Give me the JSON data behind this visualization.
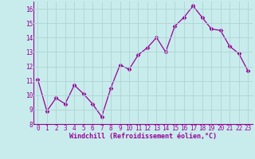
{
  "x": [
    0,
    1,
    2,
    3,
    4,
    5,
    6,
    7,
    8,
    9,
    10,
    11,
    12,
    13,
    14,
    15,
    16,
    17,
    18,
    19,
    20,
    21,
    22,
    23
  ],
  "y": [
    11.1,
    8.9,
    9.8,
    9.4,
    10.7,
    10.1,
    9.4,
    8.5,
    10.5,
    12.1,
    11.8,
    12.8,
    13.3,
    14.0,
    13.0,
    14.8,
    15.4,
    16.2,
    15.4,
    14.6,
    14.5,
    13.4,
    12.9,
    11.7
  ],
  "line_color": "#990099",
  "marker": "D",
  "marker_size": 2.5,
  "bg_color": "#c8ecec",
  "grid_color": "#b0d4d4",
  "xlabel": "Windchill (Refroidissement éolien,°C)",
  "xlabel_color": "#990099",
  "tick_color": "#990099",
  "ylim": [
    8,
    16.5
  ],
  "xlim": [
    -0.5,
    23.5
  ],
  "yticks": [
    8,
    9,
    10,
    11,
    12,
    13,
    14,
    15,
    16
  ],
  "xticks": [
    0,
    1,
    2,
    3,
    4,
    5,
    6,
    7,
    8,
    9,
    10,
    11,
    12,
    13,
    14,
    15,
    16,
    17,
    18,
    19,
    20,
    21,
    22,
    23
  ],
  "tick_fontsize": 5.5,
  "xlabel_fontsize": 6.0
}
